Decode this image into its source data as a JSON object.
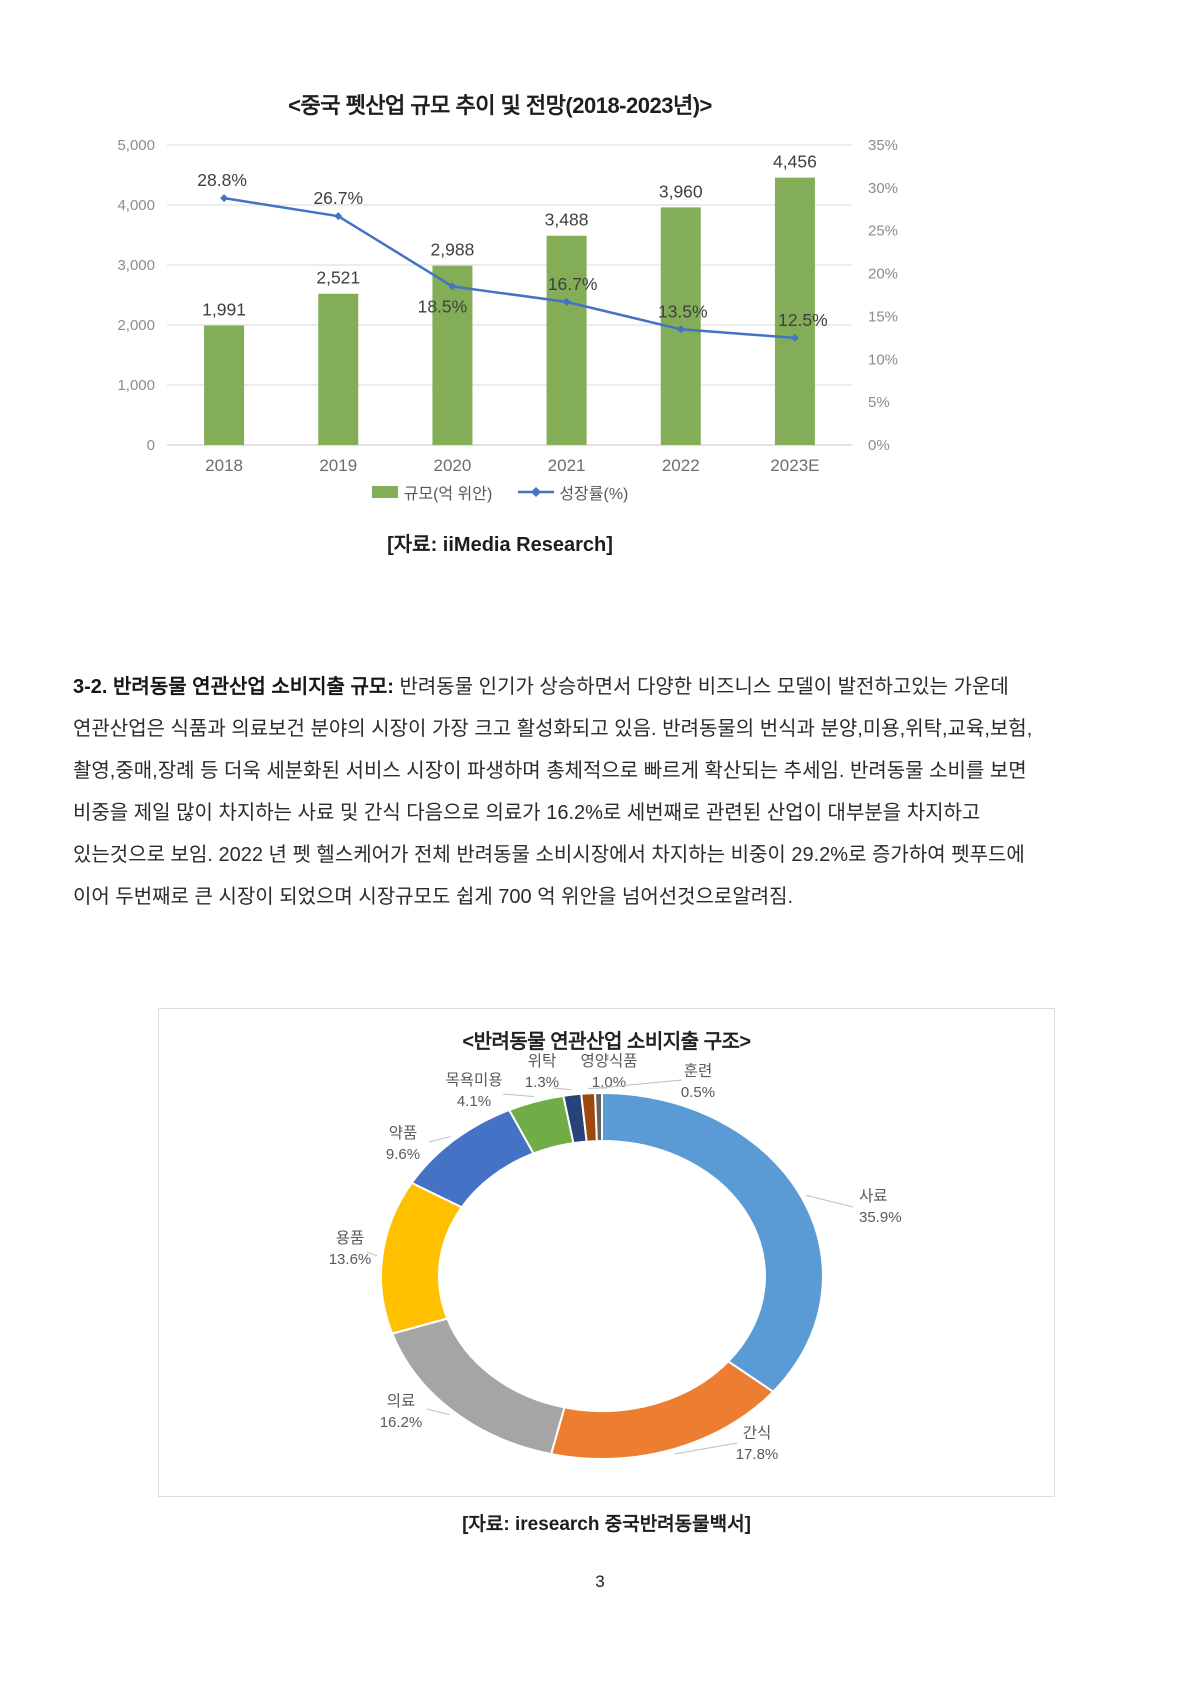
{
  "page": {
    "number": "3"
  },
  "paragraph": {
    "lead": "3-2. 반려동물 연관산업 소비지출 규모:",
    "body": " 반려동물 인기가 상승하면서 다양한 비즈니스 모델이 발전하고있는 가운데 연관산업은 식품과 의료보건 분야의 시장이 가장 크고 활성화되고 있음. 반려동물의 번식과 분양,미용,위탁,교육,보험,촬영,중매,장례 등 더욱 세분화된 서비스 시장이 파생하며 총체적으로 빠르게 확산되는 추세임. 반려동물 소비를 보면 비중을 제일 많이 차지하는 사료 및 간식 다음으로 의료가 16.2%로 세번째로 관련된 산업이 대부분을 차지하고 있는것으로 보임. 2022 년 펫 헬스케어가 전체 반려동물 소비시장에서 차지하는 비중이 29.2%로 증가하여 펫푸드에 이어 두번째로 큰 시장이 되었으며 시장규모도 쉽게 700 억 위안을 넘어선것으로알려짐."
  },
  "chart_data": [
    {
      "type": "bar",
      "subtype": "bar-line-combo",
      "title": "<중국 펫산업 규모 추이 및 전망(2018-2023년)>",
      "categories": [
        "2018",
        "2019",
        "2020",
        "2021",
        "2022",
        "2023E"
      ],
      "series": [
        {
          "name": "규모(억 위안)",
          "kind": "bar",
          "color": "#84AD58",
          "values": [
            1991,
            2521,
            2988,
            3488,
            3960,
            4456
          ],
          "labels": [
            "1,991",
            "2,521",
            "2,988",
            "3,488",
            "3,960",
            "4,456"
          ]
        },
        {
          "name": "성장률(%)",
          "kind": "line",
          "color": "#4472C4",
          "values": [
            28.8,
            26.7,
            18.5,
            16.7,
            13.5,
            12.5
          ],
          "labels": [
            "28.8%",
            "26.7%",
            "18.5%",
            "16.7%",
            "13.5%",
            "12.5%"
          ]
        }
      ],
      "left_axis": {
        "min": 0,
        "max": 5000,
        "ticks": [
          "5,000",
          "4,000",
          "3,000",
          "2,000",
          "1,000",
          "0"
        ]
      },
      "right_axis": {
        "min": 0,
        "max": 35,
        "ticks": [
          "35%",
          "30%",
          "25%",
          "20%",
          "15%",
          "10%",
          "5%",
          "0%"
        ]
      },
      "grid": true,
      "legend_position": "bottom",
      "source": "[자료: iiMedia Research]"
    },
    {
      "type": "pie",
      "donut": true,
      "title": "<반려동물 연관산업 소비지출 구조>",
      "start_angle_deg": 0,
      "direction": "clockwise",
      "slices": [
        {
          "label": "사료",
          "value": 35.9,
          "pct": "35.9%",
          "color": "#5B9BD5"
        },
        {
          "label": "간식",
          "value": 17.8,
          "pct": "17.8%",
          "color": "#ED7D31"
        },
        {
          "label": "의료",
          "value": 16.2,
          "pct": "16.2%",
          "color": "#A5A5A5"
        },
        {
          "label": "용품",
          "value": 13.6,
          "pct": "13.6%",
          "color": "#FFC000"
        },
        {
          "label": "약품",
          "value": 9.6,
          "pct": "9.6%",
          "color": "#4472C4"
        },
        {
          "label": "목욕미용",
          "value": 4.1,
          "pct": "4.1%",
          "color": "#70AD47"
        },
        {
          "label": "위탁",
          "value": 1.3,
          "pct": "1.3%",
          "color": "#264478"
        },
        {
          "label": "영양식품",
          "value": 1.0,
          "pct": "1.0%",
          "color": "#9E480E"
        },
        {
          "label": "훈련",
          "value": 0.5,
          "pct": "0.5%",
          "color": "#636363"
        }
      ],
      "source": "[자료: iresearch 중국반려동물백서]"
    }
  ]
}
